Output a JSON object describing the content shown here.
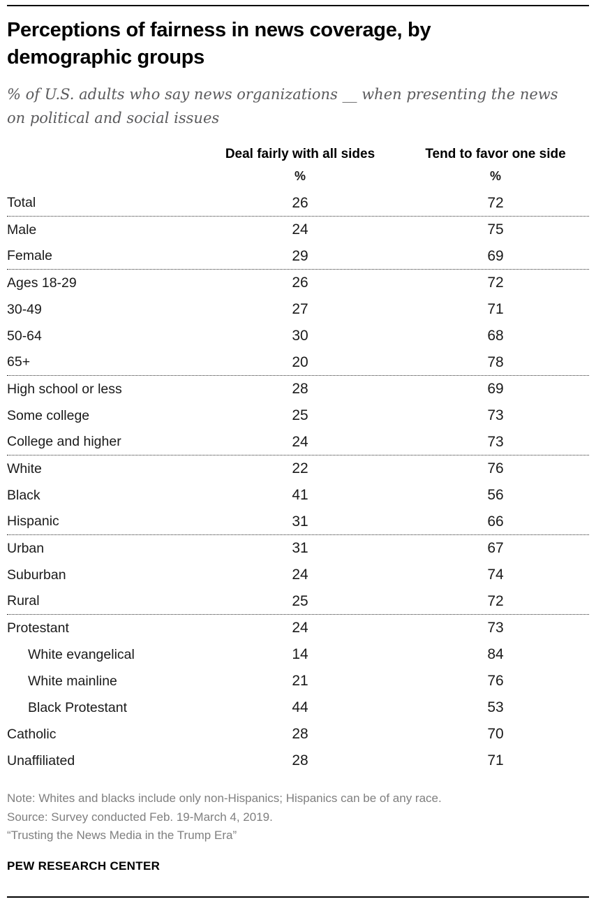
{
  "colors": {
    "rule": "#000000",
    "body_text": "#1a1a1a",
    "subtitle_text": "#5a5a5c",
    "note_text": "#7f7f7f"
  },
  "chart_data": {
    "type": "table",
    "title": "Perceptions of fairness in news coverage, by demographic groups",
    "title_lines": [
      "Perceptions of fairness in news coverage, by",
      "demographic groups"
    ],
    "subtitle": "% of U.S. adults who say news organizations __ when presenting the news on political and social issues",
    "subtitle_lines": [
      "% of U.S. adults who say news organizations __ when presenting the news",
      "on political and social issues"
    ],
    "columns": [
      "Deal fairly with all sides",
      "Tend to favor one side"
    ],
    "unit_row": [
      "%",
      "%"
    ],
    "rows": [
      {
        "label": "Total",
        "deal_fairly": 26,
        "favor_one_side": 72,
        "indent": false,
        "divider_after": true
      },
      {
        "label": "Male",
        "deal_fairly": 24,
        "favor_one_side": 75,
        "indent": false,
        "divider_after": false
      },
      {
        "label": "Female",
        "deal_fairly": 29,
        "favor_one_side": 69,
        "indent": false,
        "divider_after": true
      },
      {
        "label": "Ages 18-29",
        "deal_fairly": 26,
        "favor_one_side": 72,
        "indent": false,
        "divider_after": false
      },
      {
        "label": "30-49",
        "deal_fairly": 27,
        "favor_one_side": 71,
        "indent": false,
        "divider_after": false
      },
      {
        "label": "50-64",
        "deal_fairly": 30,
        "favor_one_side": 68,
        "indent": false,
        "divider_after": false
      },
      {
        "label": "65+",
        "deal_fairly": 20,
        "favor_one_side": 78,
        "indent": false,
        "divider_after": true
      },
      {
        "label": "High school or less",
        "deal_fairly": 28,
        "favor_one_side": 69,
        "indent": false,
        "divider_after": false
      },
      {
        "label": "Some college",
        "deal_fairly": 25,
        "favor_one_side": 73,
        "indent": false,
        "divider_after": false
      },
      {
        "label": "College and higher",
        "deal_fairly": 24,
        "favor_one_side": 73,
        "indent": false,
        "divider_after": true
      },
      {
        "label": "White",
        "deal_fairly": 22,
        "favor_one_side": 76,
        "indent": false,
        "divider_after": false
      },
      {
        "label": "Black",
        "deal_fairly": 41,
        "favor_one_side": 56,
        "indent": false,
        "divider_after": false
      },
      {
        "label": "Hispanic",
        "deal_fairly": 31,
        "favor_one_side": 66,
        "indent": false,
        "divider_after": true
      },
      {
        "label": "Urban",
        "deal_fairly": 31,
        "favor_one_side": 67,
        "indent": false,
        "divider_after": false
      },
      {
        "label": "Suburban",
        "deal_fairly": 24,
        "favor_one_side": 74,
        "indent": false,
        "divider_after": false
      },
      {
        "label": "Rural",
        "deal_fairly": 25,
        "favor_one_side": 72,
        "indent": false,
        "divider_after": true
      },
      {
        "label": "Protestant",
        "deal_fairly": 24,
        "favor_one_side": 73,
        "indent": false,
        "divider_after": false
      },
      {
        "label": "White evangelical",
        "deal_fairly": 14,
        "favor_one_side": 84,
        "indent": true,
        "divider_after": false
      },
      {
        "label": "White mainline",
        "deal_fairly": 21,
        "favor_one_side": 76,
        "indent": true,
        "divider_after": false
      },
      {
        "label": "Black Protestant",
        "deal_fairly": 44,
        "favor_one_side": 53,
        "indent": true,
        "divider_after": false
      },
      {
        "label": "Catholic",
        "deal_fairly": 28,
        "favor_one_side": 70,
        "indent": false,
        "divider_after": false
      },
      {
        "label": "Unaffiliated",
        "deal_fairly": 28,
        "favor_one_side": 71,
        "indent": false,
        "divider_after": false
      }
    ]
  },
  "footer": {
    "note": "Note: Whites and blacks include only non-Hispanics; Hispanics can be of any race.",
    "source": "Source: Survey conducted Feb. 19-March 4, 2019.",
    "report_title": "“Trusting the News Media in the Trump Era”",
    "brand": "PEW RESEARCH CENTER"
  }
}
